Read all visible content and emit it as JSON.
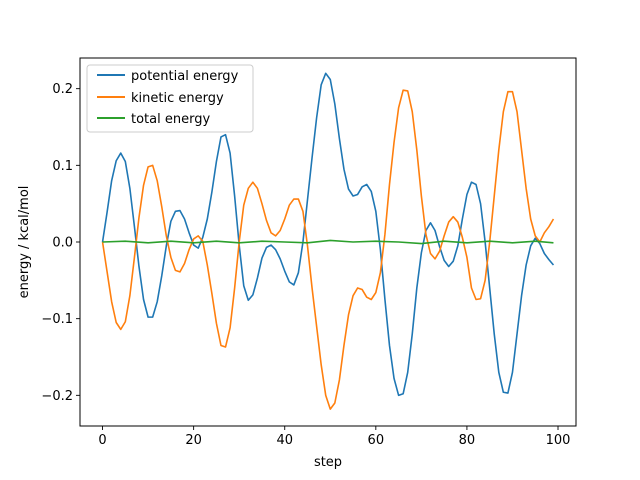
{
  "chart_data": {
    "type": "line",
    "xlabel": "step",
    "ylabel": "energy / kcal/mol",
    "xlim": [
      -4.95,
      103.95
    ],
    "ylim": [
      -0.24,
      0.24
    ],
    "xticks": [
      0,
      20,
      40,
      60,
      80,
      100
    ],
    "yticks": [
      -0.2,
      -0.1,
      0.0,
      0.1,
      0.2
    ],
    "xtick_labels": [
      "0",
      "20",
      "40",
      "60",
      "80",
      "100"
    ],
    "ytick_labels": [
      "−0.2",
      "−0.1",
      "0.0",
      "0.1",
      "0.2"
    ],
    "legend_position": "upper-left",
    "series": [
      {
        "name": "potential energy",
        "color": "#1f77b4",
        "x": [
          0,
          1,
          2,
          3,
          4,
          5,
          6,
          7,
          8,
          9,
          10,
          11,
          12,
          13,
          14,
          15,
          16,
          17,
          18,
          19,
          20,
          21,
          22,
          23,
          24,
          25,
          26,
          27,
          28,
          29,
          30,
          31,
          32,
          33,
          34,
          35,
          36,
          37,
          38,
          39,
          40,
          41,
          42,
          43,
          44,
          45,
          46,
          47,
          48,
          49,
          50,
          51,
          52,
          53,
          54,
          55,
          56,
          57,
          58,
          59,
          60,
          61,
          62,
          63,
          64,
          65,
          66,
          67,
          68,
          69,
          70,
          71,
          72,
          73,
          74,
          75,
          76,
          77,
          78,
          79,
          80,
          81,
          82,
          83,
          84,
          85,
          86,
          87,
          88,
          89,
          90,
          91,
          92,
          93,
          94,
          95,
          96,
          97,
          98,
          99
        ],
        "values": [
          0.0,
          0.039,
          0.08,
          0.106,
          0.116,
          0.105,
          0.07,
          0.02,
          -0.032,
          -0.075,
          -0.098,
          -0.098,
          -0.078,
          -0.044,
          -0.005,
          0.027,
          0.04,
          0.041,
          0.03,
          0.012,
          -0.004,
          -0.008,
          0.006,
          0.03,
          0.065,
          0.105,
          0.137,
          0.14,
          0.116,
          0.06,
          -0.004,
          -0.057,
          -0.076,
          -0.069,
          -0.047,
          -0.021,
          -0.007,
          -0.004,
          -0.01,
          -0.022,
          -0.038,
          -0.052,
          -0.056,
          -0.04,
          0.0,
          0.055,
          0.11,
          0.162,
          0.205,
          0.22,
          0.212,
          0.18,
          0.135,
          0.095,
          0.069,
          0.06,
          0.062,
          0.072,
          0.075,
          0.066,
          0.04,
          -0.01,
          -0.075,
          -0.135,
          -0.178,
          -0.2,
          -0.198,
          -0.17,
          -0.12,
          -0.06,
          -0.014,
          0.015,
          0.025,
          0.015,
          -0.006,
          -0.024,
          -0.032,
          -0.025,
          -0.005,
          0.03,
          0.062,
          0.078,
          0.075,
          0.05,
          0.0,
          -0.06,
          -0.12,
          -0.17,
          -0.196,
          -0.197,
          -0.17,
          -0.12,
          -0.07,
          -0.03,
          -0.005,
          0.005,
          -0.002,
          -0.015,
          -0.023,
          -0.03
        ]
      },
      {
        "name": "kinetic energy",
        "color": "#ff7f0e",
        "x": [
          0,
          1,
          2,
          3,
          4,
          5,
          6,
          7,
          8,
          9,
          10,
          11,
          12,
          13,
          14,
          15,
          16,
          17,
          18,
          19,
          20,
          21,
          22,
          23,
          24,
          25,
          26,
          27,
          28,
          29,
          30,
          31,
          32,
          33,
          34,
          35,
          36,
          37,
          38,
          39,
          40,
          41,
          42,
          43,
          44,
          45,
          46,
          47,
          48,
          49,
          50,
          51,
          52,
          53,
          54,
          55,
          56,
          57,
          58,
          59,
          60,
          61,
          62,
          63,
          64,
          65,
          66,
          67,
          68,
          69,
          70,
          71,
          72,
          73,
          74,
          75,
          76,
          77,
          78,
          79,
          80,
          81,
          82,
          83,
          84,
          85,
          86,
          87,
          88,
          89,
          90,
          91,
          92,
          93,
          94,
          95,
          96,
          97,
          98,
          99
        ],
        "values": [
          0.0,
          -0.039,
          -0.078,
          -0.105,
          -0.114,
          -0.104,
          -0.07,
          -0.02,
          0.032,
          0.074,
          0.098,
          0.1,
          0.08,
          0.046,
          0.008,
          -0.02,
          -0.037,
          -0.039,
          -0.028,
          -0.01,
          0.004,
          0.008,
          0.001,
          -0.03,
          -0.067,
          -0.106,
          -0.135,
          -0.137,
          -0.112,
          -0.06,
          0.0,
          0.048,
          0.07,
          0.078,
          0.07,
          0.05,
          0.028,
          0.012,
          0.008,
          0.015,
          0.03,
          0.048,
          0.056,
          0.056,
          0.04,
          -0.005,
          -0.06,
          -0.11,
          -0.16,
          -0.2,
          -0.218,
          -0.21,
          -0.18,
          -0.135,
          -0.095,
          -0.07,
          -0.06,
          -0.062,
          -0.072,
          -0.075,
          -0.066,
          -0.04,
          0.01,
          0.075,
          0.13,
          0.175,
          0.198,
          0.197,
          0.17,
          0.12,
          0.06,
          0.01,
          -0.015,
          -0.022,
          -0.012,
          0.008,
          0.026,
          0.033,
          0.026,
          0.006,
          -0.02,
          -0.06,
          -0.075,
          -0.074,
          -0.05,
          0.0,
          0.06,
          0.12,
          0.17,
          0.196,
          0.196,
          0.17,
          0.12,
          0.07,
          0.03,
          0.008,
          0.0,
          0.012,
          0.02,
          0.03
        ]
      },
      {
        "name": "total energy",
        "color": "#2ca02c",
        "x": [
          0,
          5,
          10,
          15,
          20,
          25,
          30,
          35,
          40,
          45,
          50,
          55,
          60,
          65,
          70,
          75,
          80,
          85,
          90,
          95,
          99
        ],
        "values": [
          0.0,
          0.001,
          -0.001,
          0.001,
          -0.001,
          0.001,
          -0.001,
          0.001,
          0.0,
          -0.001,
          0.002,
          0.0,
          0.001,
          0.0,
          -0.002,
          0.001,
          -0.001,
          0.001,
          -0.001,
          0.001,
          -0.001
        ]
      }
    ]
  }
}
